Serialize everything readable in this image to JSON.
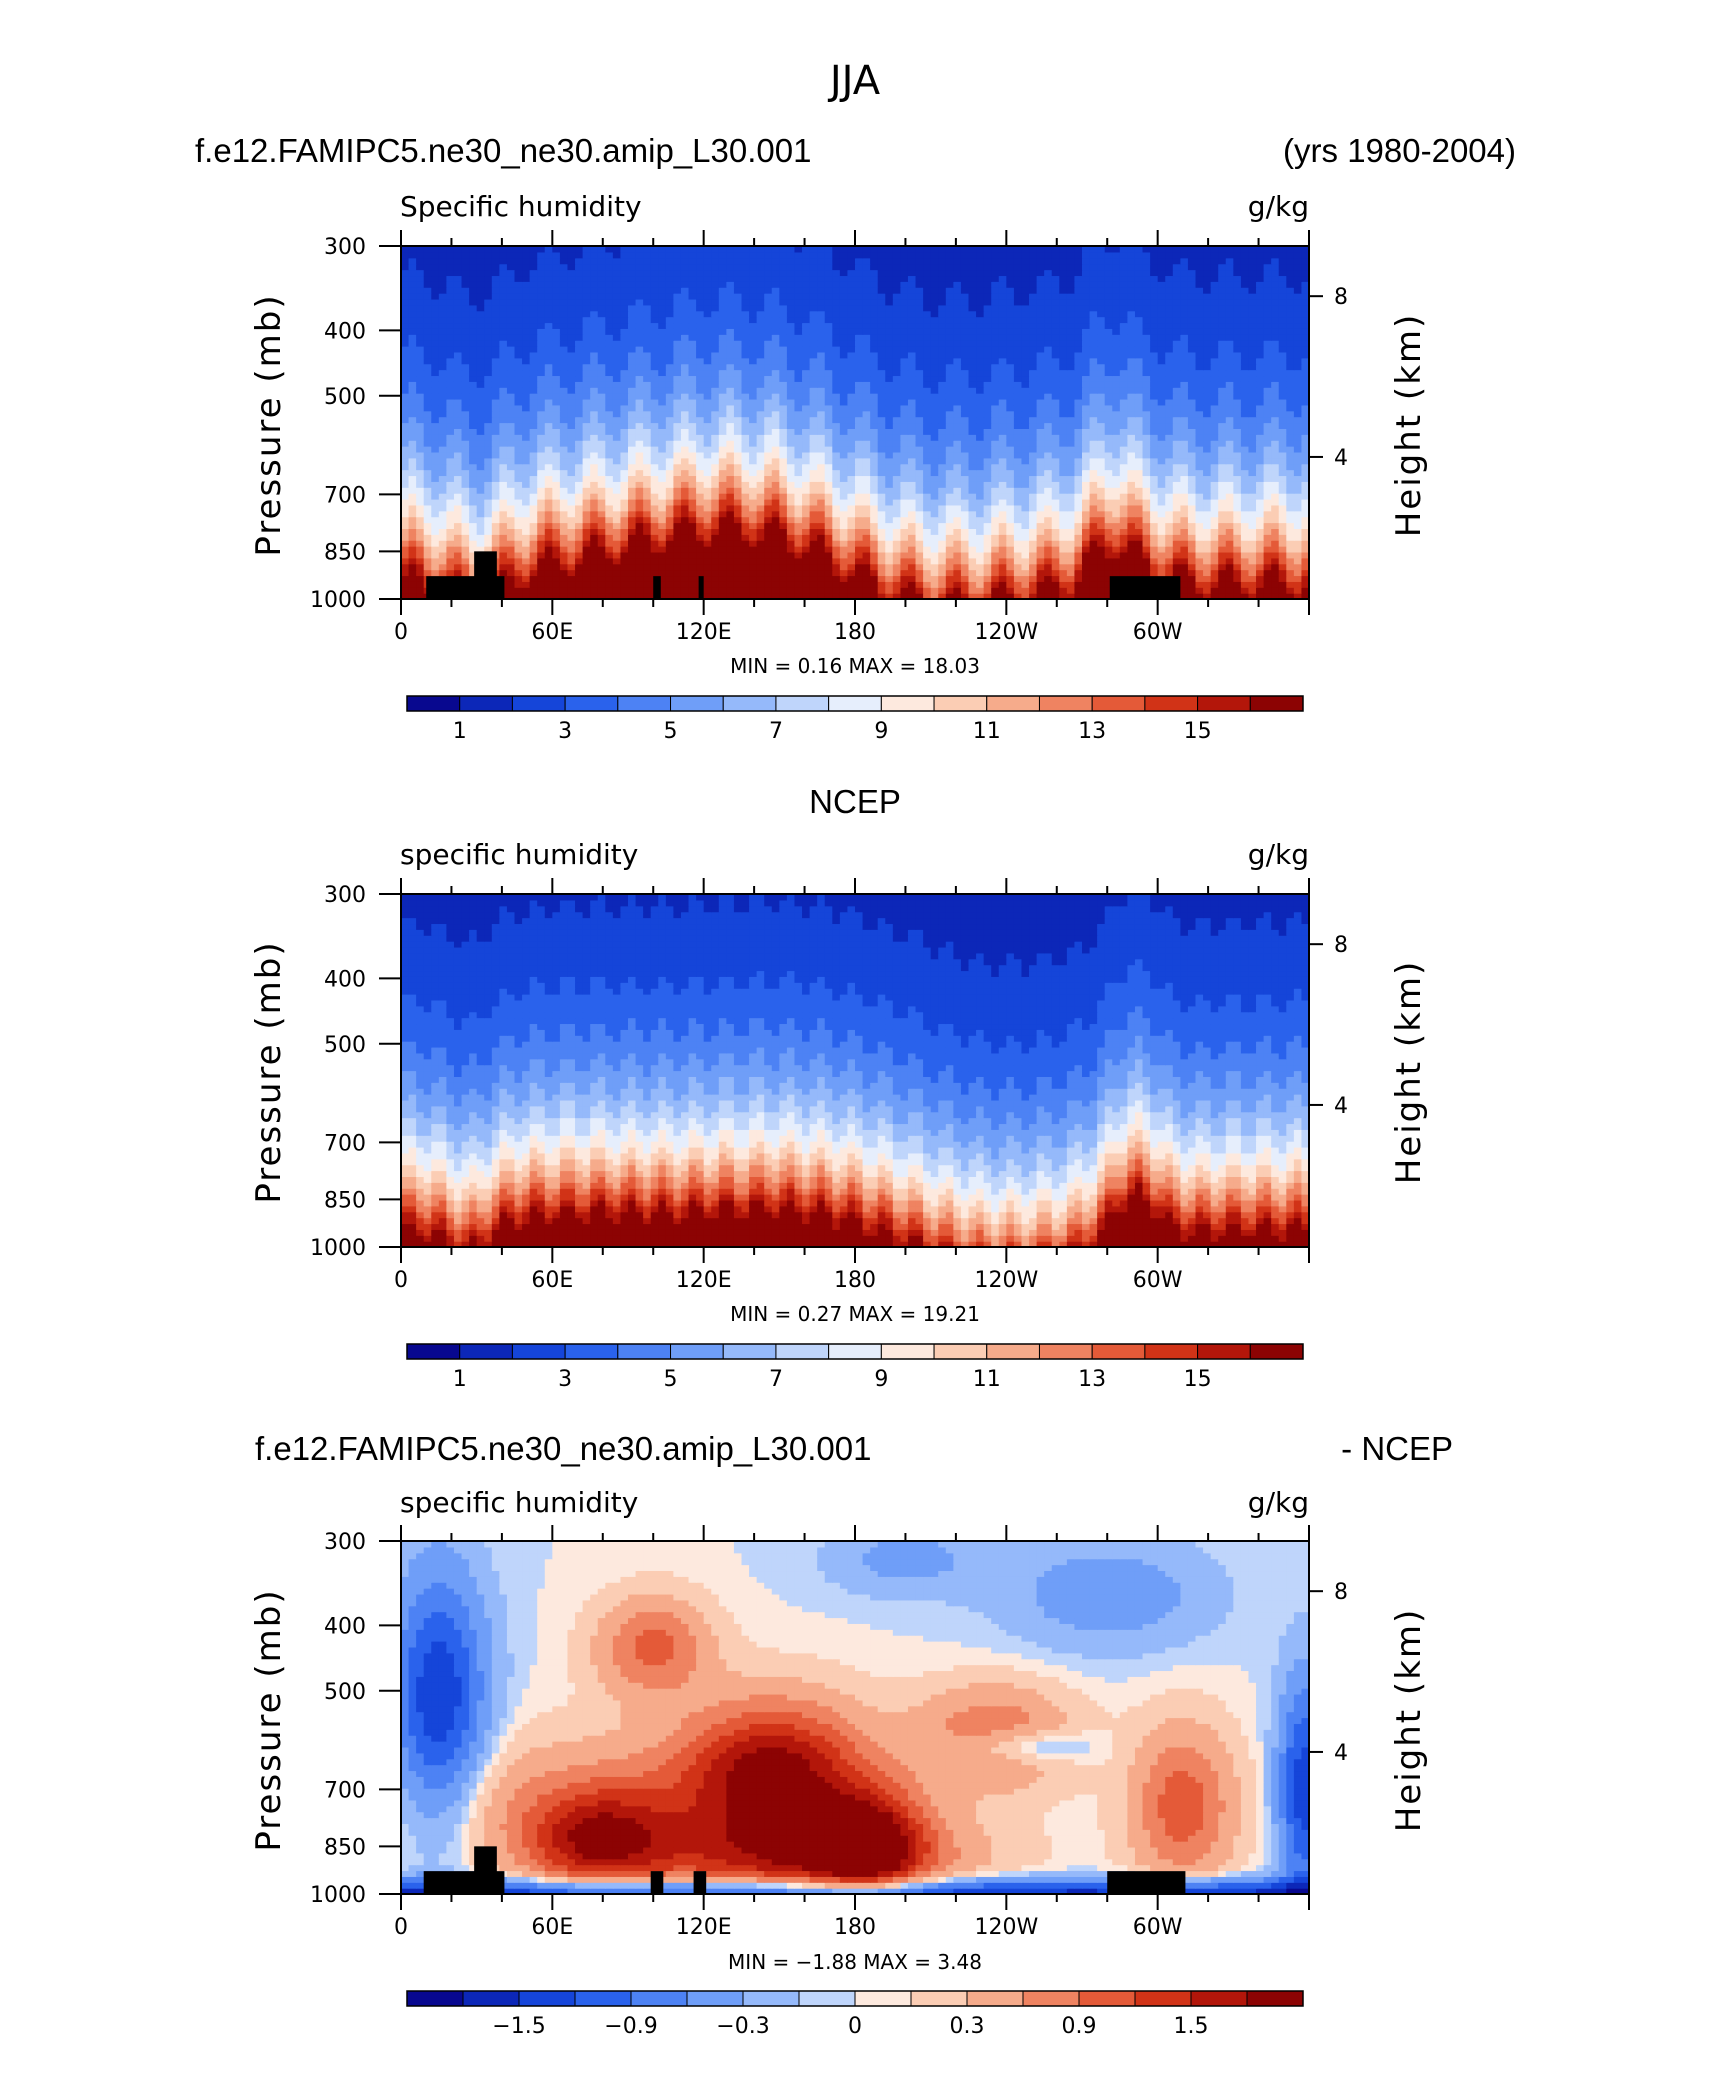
{
  "figure": {
    "title": "JJA",
    "header_left": "f.e12.FAMIPC5.ne30_ne30.amip_L30.001",
    "header_right": "(yrs 1980-2004)"
  },
  "chart_data": [
    {
      "type": "heatmap",
      "panel_title": "",
      "left_label": "Specific humidity",
      "right_label": "g/kg",
      "ylabel": "Pressure (mb)",
      "ylabel_right": "Height (km)",
      "xticks": [
        "0",
        "60E",
        "120E",
        "180",
        "120W",
        "60W"
      ],
      "yticks": [
        "300",
        "400",
        "500",
        "700",
        "850",
        "1000"
      ],
      "yticks_right": [
        "8",
        "4"
      ],
      "ylim": [
        1000,
        300
      ],
      "y_scale": "log",
      "minmax_text": "MIN =     0.16   MAX =    18.03",
      "colorbar": {
        "labels": [
          "1",
          "3",
          "5",
          "7",
          "9",
          "11",
          "13",
          "15"
        ],
        "levels": [
          0,
          1,
          2,
          3,
          4,
          5,
          6,
          7,
          8,
          9,
          10,
          11,
          12,
          13,
          14,
          15
        ],
        "colors": [
          "#08088f",
          "#0c27b8",
          "#1545d9",
          "#2a62ec",
          "#4d82f4",
          "#6f9ef8",
          "#95b9fa",
          "#bfd5fb",
          "#e6eefc",
          "#fde9de",
          "#fbcdb4",
          "#f6ab8b",
          "#ef8361",
          "#e45a38",
          "#d13317",
          "#b3160a",
          "#8c0303"
        ]
      },
      "shape": "model",
      "land_blocks": [
        {
          "x1": 10,
          "x2": 41,
          "p": 925
        },
        {
          "x1": 29,
          "x2": 38,
          "p": 850
        },
        {
          "x1": 100,
          "x2": 103,
          "p": 925
        },
        {
          "x1": 118,
          "x2": 120,
          "p": 925
        },
        {
          "x1": 281,
          "x2": 309,
          "p": 925
        }
      ]
    },
    {
      "type": "heatmap",
      "panel_title": "NCEP",
      "left_label": "specific humidity",
      "right_label": "g/kg",
      "ylabel": "Pressure (mb)",
      "ylabel_right": "Height (km)",
      "xticks": [
        "0",
        "60E",
        "120E",
        "180",
        "120W",
        "60W"
      ],
      "yticks": [
        "300",
        "400",
        "500",
        "700",
        "850",
        "1000"
      ],
      "yticks_right": [
        "8",
        "4"
      ],
      "ylim": [
        1000,
        300
      ],
      "y_scale": "log",
      "minmax_text": "MIN =     0.27   MAX =    19.21",
      "colorbar": {
        "labels": [
          "1",
          "3",
          "5",
          "7",
          "9",
          "11",
          "13",
          "15"
        ],
        "levels": [
          0,
          1,
          2,
          3,
          4,
          5,
          6,
          7,
          8,
          9,
          10,
          11,
          12,
          13,
          14,
          15
        ],
        "colors": [
          "#08088f",
          "#0c27b8",
          "#1545d9",
          "#2a62ec",
          "#4d82f4",
          "#6f9ef8",
          "#95b9fa",
          "#bfd5fb",
          "#e6eefc",
          "#fde9de",
          "#fbcdb4",
          "#f6ab8b",
          "#ef8361",
          "#e45a38",
          "#d13317",
          "#b3160a",
          "#8c0303"
        ]
      },
      "shape": "ncep",
      "land_blocks": []
    },
    {
      "type": "heatmap",
      "panel_title_left": "f.e12.FAMIPC5.ne30_ne30.amip_L30.001",
      "panel_title_right": "- NCEP",
      "left_label": "specific humidity",
      "right_label": "g/kg",
      "ylabel": "Pressure (mb)",
      "ylabel_right": "Height (km)",
      "xticks": [
        "0",
        "60E",
        "120E",
        "180",
        "120W",
        "60W"
      ],
      "yticks": [
        "300",
        "400",
        "500",
        "700",
        "850",
        "1000"
      ],
      "yticks_right": [
        "8",
        "4"
      ],
      "ylim": [
        1000,
        300
      ],
      "y_scale": "log",
      "minmax_text": "MIN =    −1.88   MAX =      3.48",
      "colorbar": {
        "labels": [
          "−1.5",
          "−0.9",
          "−0.3",
          "0",
          "0.3",
          "0.9",
          "1.5"
        ],
        "levels": [
          -1.8,
          -1.5,
          -1.2,
          -0.9,
          -0.6,
          -0.3,
          -0.1,
          0,
          0.1,
          0.3,
          0.6,
          0.9,
          1.2,
          1.5,
          1.8
        ],
        "colors": [
          "#08088f",
          "#0c27b8",
          "#1545d9",
          "#2a62ec",
          "#4d82f4",
          "#6f9ef8",
          "#95b9fa",
          "#bfd5fb",
          "#fde9de",
          "#fbcdb4",
          "#f6ab8b",
          "#ef8361",
          "#e45a38",
          "#d13317",
          "#b3160a",
          "#8c0303"
        ]
      },
      "shape": "diff",
      "land_blocks": [
        {
          "x1": 9,
          "x2": 41,
          "p": 925
        },
        {
          "x1": 29,
          "x2": 38,
          "p": 850
        },
        {
          "x1": 99,
          "x2": 104,
          "p": 925
        },
        {
          "x1": 116,
          "x2": 121,
          "p": 925
        },
        {
          "x1": 280,
          "x2": 311,
          "p": 925
        }
      ]
    }
  ]
}
